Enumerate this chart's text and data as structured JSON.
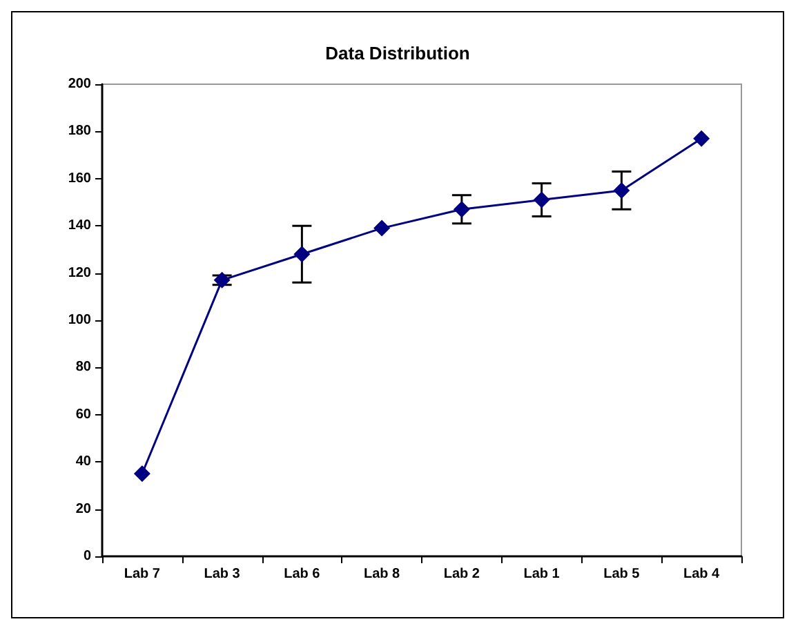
{
  "chart_data": {
    "type": "line",
    "title": "Data Distribution",
    "categories": [
      "Lab 7",
      "Lab 3",
      "Lab 6",
      "Lab 8",
      "Lab 2",
      "Lab 1",
      "Lab 5",
      "Lab 4"
    ],
    "series": [
      {
        "color": "#000080",
        "values": [
          35,
          117,
          128,
          139,
          147,
          151,
          155,
          177
        ],
        "errors": [
          null,
          2,
          12,
          null,
          6,
          7,
          8,
          null
        ]
      }
    ],
    "ylim": [
      0,
      200
    ],
    "yticks": [
      0,
      20,
      40,
      60,
      80,
      100,
      120,
      140,
      160,
      180,
      200
    ],
    "grid": false,
    "marker": "diamond",
    "line_style": "solid"
  }
}
